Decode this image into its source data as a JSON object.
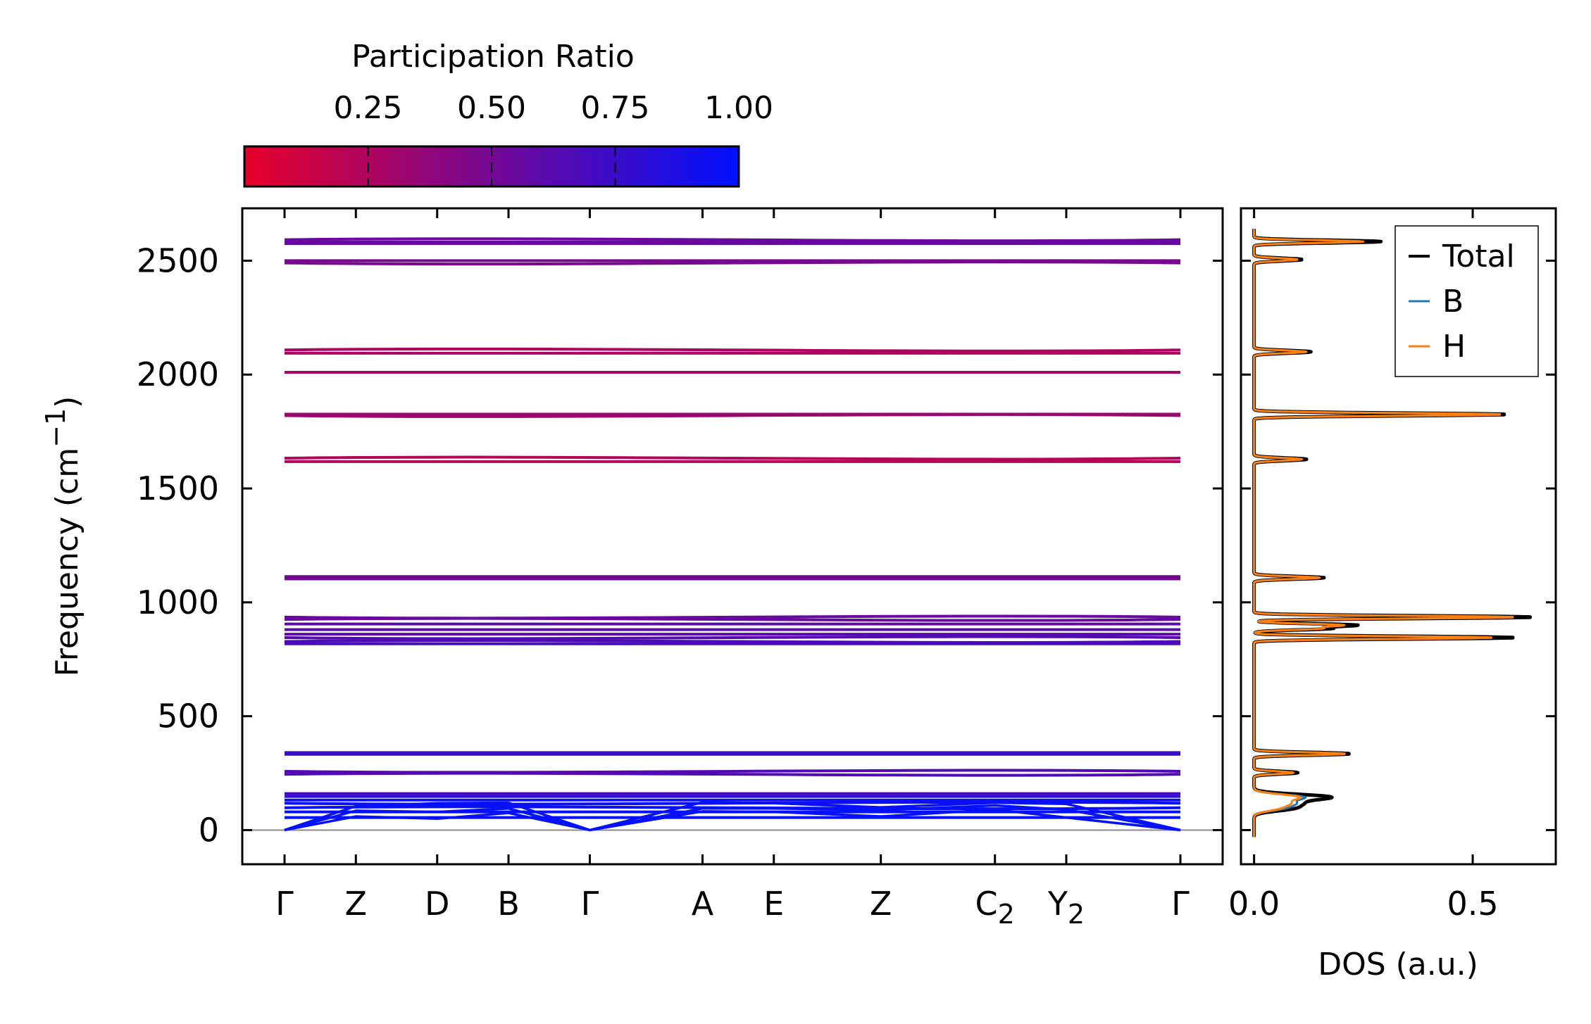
{
  "chart_data": [
    {
      "type": "line",
      "title": "",
      "xlabel": "",
      "ylabel": "Frequency (cm⁻¹)",
      "ylabel_parts": {
        "main": "Frequency (cm",
        "sup": "−1",
        "close": ")"
      },
      "ylim": [
        -150,
        2730
      ],
      "yticks": [
        "0",
        "500",
        "1000",
        "1500",
        "2000",
        "2500"
      ],
      "ytick_values": [
        0,
        500,
        1000,
        1500,
        2000,
        2500
      ],
      "kpoints": [
        {
          "main": "Γ",
          "sub": "",
          "pos": 0.0
        },
        {
          "main": "Z",
          "sub": "",
          "pos": 0.5
        },
        {
          "main": "D",
          "sub": "",
          "pos": 1.07
        },
        {
          "main": "B",
          "sub": "",
          "pos": 1.57
        },
        {
          "main": "Γ",
          "sub": "",
          "pos": 2.14
        },
        {
          "main": "A",
          "sub": "",
          "pos": 2.93
        },
        {
          "main": "E",
          "sub": "",
          "pos": 3.43
        },
        {
          "main": "Z",
          "sub": "",
          "pos": 4.18
        },
        {
          "main": "C",
          "sub": "2",
          "pos": 4.98
        },
        {
          "main": "Y",
          "sub": "2",
          "pos": 5.48
        },
        {
          "main": "Γ",
          "sub": "",
          "pos": 6.28
        }
      ],
      "colorbar": {
        "label": "Participation Ratio",
        "ticks": [
          "0.25",
          "0.50",
          "0.75",
          "1.00"
        ],
        "tick_values": [
          0.25,
          0.5,
          0.75,
          1.0
        ],
        "range": [
          0.0,
          1.0
        ],
        "low_color": "#e8002a",
        "high_color": "#0010ff"
      },
      "bands": [
        {
          "freq": 2592,
          "pr": 0.55
        },
        {
          "freq": 2582,
          "pr": 0.55
        },
        {
          "freq": 2575,
          "pr": 0.55
        },
        {
          "freq": 2500,
          "pr": 0.48
        },
        {
          "freq": 2490,
          "pr": 0.48
        },
        {
          "freq": 2108,
          "pr": 0.25
        },
        {
          "freq": 2094,
          "pr": 0.25
        },
        {
          "freq": 2010,
          "pr": 0.28
        },
        {
          "freq": 1826,
          "pr": 0.32
        },
        {
          "freq": 1820,
          "pr": 0.32
        },
        {
          "freq": 1633,
          "pr": 0.22
        },
        {
          "freq": 1618,
          "pr": 0.22
        },
        {
          "freq": 1113,
          "pr": 0.5
        },
        {
          "freq": 1103,
          "pr": 0.5
        },
        {
          "freq": 935,
          "pr": 0.55
        },
        {
          "freq": 925,
          "pr": 0.55
        },
        {
          "freq": 905,
          "pr": 0.6
        },
        {
          "freq": 880,
          "pr": 0.6
        },
        {
          "freq": 860,
          "pr": 0.62
        },
        {
          "freq": 845,
          "pr": 0.65
        },
        {
          "freq": 828,
          "pr": 0.68
        },
        {
          "freq": 818,
          "pr": 0.68
        },
        {
          "freq": 340,
          "pr": 0.75
        },
        {
          "freq": 333,
          "pr": 0.75
        },
        {
          "freq": 258,
          "pr": 0.65
        },
        {
          "freq": 245,
          "pr": 0.65
        },
        {
          "freq": 160,
          "pr": 0.7
        },
        {
          "freq": 148,
          "pr": 0.8
        },
        {
          "freq": 132,
          "pr": 0.95
        },
        {
          "freq": 118,
          "pr": 0.95
        },
        {
          "freq": 98,
          "pr": 0.97
        },
        {
          "freq": 80,
          "pr": 0.97
        },
        {
          "freq": 55,
          "pr": 0.97
        }
      ],
      "acoustic": [
        {
          "points": [
            [
              0,
              0
            ],
            [
              0.5,
              60
            ],
            [
              1.07,
              50
            ],
            [
              1.57,
              75
            ],
            [
              2.14,
              0
            ],
            [
              2.93,
              82
            ],
            [
              3.43,
              80
            ],
            [
              4.18,
              60
            ],
            [
              4.98,
              90
            ],
            [
              5.48,
              55
            ],
            [
              6.28,
              0
            ]
          ],
          "pr": 0.98
        },
        {
          "points": [
            [
              0,
              0
            ],
            [
              0.5,
              85
            ],
            [
              1.07,
              80
            ],
            [
              1.57,
              95
            ],
            [
              2.14,
              0
            ],
            [
              2.93,
              95
            ],
            [
              3.43,
              95
            ],
            [
              4.18,
              88
            ],
            [
              4.98,
              108
            ],
            [
              5.48,
              90
            ],
            [
              6.28,
              0
            ]
          ],
          "pr": 0.98
        },
        {
          "points": [
            [
              0,
              0
            ],
            [
              0.5,
              105
            ],
            [
              1.07,
              118
            ],
            [
              1.57,
              120
            ],
            [
              2.14,
              0
            ],
            [
              2.93,
              122
            ],
            [
              3.43,
              118
            ],
            [
              4.18,
              100
            ],
            [
              4.98,
              120
            ],
            [
              5.48,
              115
            ],
            [
              6.28,
              0
            ]
          ],
          "pr": 0.98
        }
      ]
    },
    {
      "type": "line",
      "xlabel": "DOS (a.u.)",
      "ylabel": "",
      "xlim": [
        -0.03,
        0.69
      ],
      "xticks": [
        "0.0",
        "0.5"
      ],
      "xtick_values": [
        0.0,
        0.5
      ],
      "ylim": [
        -150,
        2730
      ],
      "legend_position": "top-right",
      "series": [
        {
          "name": "Total",
          "color": "#000000",
          "peaks": [
            [
              2584,
              0.29
            ],
            [
              2505,
              0.11
            ],
            [
              2100,
              0.13
            ],
            [
              1825,
              0.58
            ],
            [
              1628,
              0.12
            ],
            [
              1108,
              0.16
            ],
            [
              935,
              0.64
            ],
            [
              900,
              0.23
            ],
            [
              885,
              0.17
            ],
            [
              845,
              0.6
            ],
            [
              335,
              0.22
            ],
            [
              252,
              0.1
            ],
            [
              145,
              0.17
            ],
            [
              118,
              0.09
            ],
            [
              95,
              0.08
            ]
          ]
        },
        {
          "name": "B",
          "color": "#1f77b4",
          "peaks": [
            [
              2584,
              0.25
            ],
            [
              2505,
              0.1
            ],
            [
              2100,
              0.12
            ],
            [
              1825,
              0.57
            ],
            [
              1628,
              0.11
            ],
            [
              1108,
              0.15
            ],
            [
              935,
              0.6
            ],
            [
              900,
              0.2
            ],
            [
              885,
              0.15
            ],
            [
              845,
              0.55
            ],
            [
              335,
              0.21
            ],
            [
              252,
              0.09
            ],
            [
              145,
              0.11
            ],
            [
              118,
              0.08
            ],
            [
              95,
              0.06
            ]
          ]
        },
        {
          "name": "H",
          "color": "#ff7f0e",
          "peaks": [
            [
              2584,
              0.25
            ],
            [
              2505,
              0.1
            ],
            [
              2100,
              0.12
            ],
            [
              1825,
              0.57
            ],
            [
              1628,
              0.11
            ],
            [
              1108,
              0.15
            ],
            [
              935,
              0.6
            ],
            [
              900,
              0.2
            ],
            [
              885,
              0.15
            ],
            [
              845,
              0.55
            ],
            [
              335,
              0.21
            ],
            [
              252,
              0.09
            ],
            [
              145,
              0.1
            ],
            [
              118,
              0.07
            ],
            [
              95,
              0.05
            ]
          ]
        }
      ]
    }
  ]
}
